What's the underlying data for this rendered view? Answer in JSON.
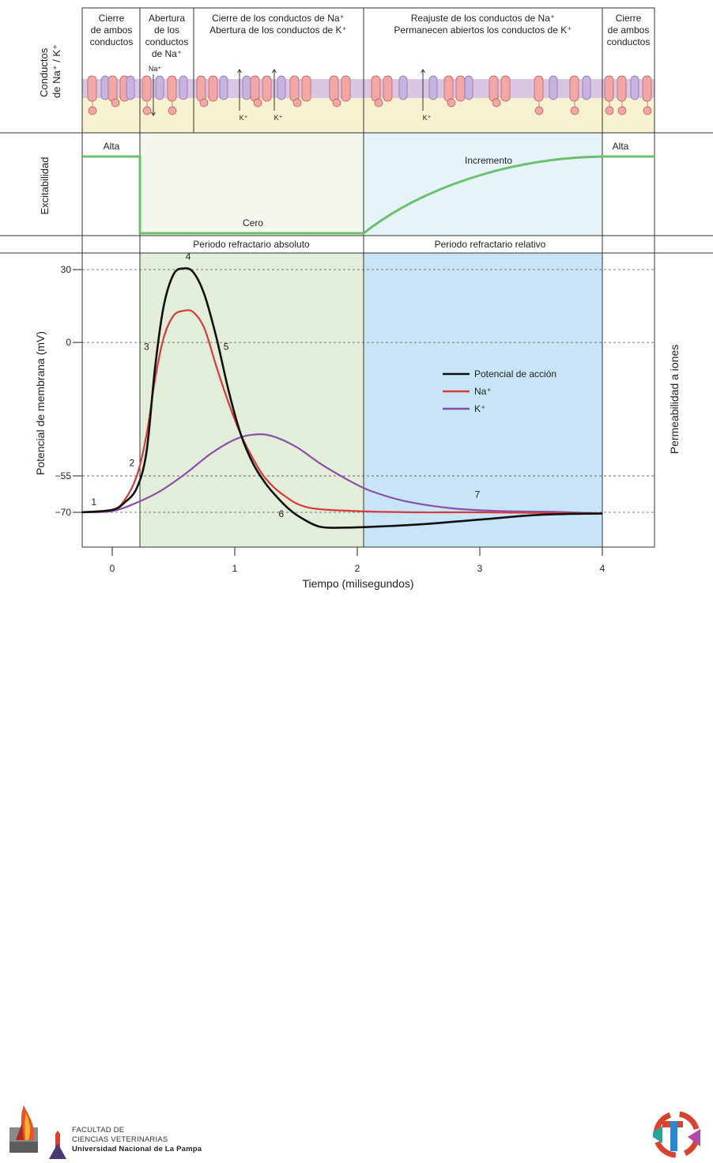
{
  "colors": {
    "action_potential": "#111111",
    "na": "#d63a3a",
    "k": "#8b4fa8",
    "excitability": "#6bbf6e",
    "absolute_bg": "#e3eeda",
    "relative_bg": "#c7e5f6",
    "membrane_band": "#d9c6e3",
    "membrane_below": "#f6f1cf",
    "na_channel": "#f2a7a7",
    "k_channel": "#c6b4e0"
  },
  "channels_panel": {
    "side_label_line1": "Conductos",
    "side_label_line2": "de Na⁺ / K⁺",
    "phases": [
      {
        "lines": [
          "Cierre",
          "de ambos",
          "conductos"
        ]
      },
      {
        "lines": [
          "Abertura",
          "de los",
          "conductos",
          "de Na⁺"
        ]
      },
      {
        "lines": [
          "Cierre de los conductos de Na⁺",
          "Abertura de los conductos de K⁺"
        ]
      },
      {
        "lines": [
          "Reajuste de los conductos de Na⁺",
          "Permanecen abiertos los conductos de K⁺"
        ]
      },
      {
        "lines": [
          "Cierre",
          "de ambos",
          "conductos"
        ]
      }
    ],
    "ion_labels": {
      "na": "Na⁺",
      "k": "K⁺"
    }
  },
  "excitability_panel": {
    "side_label": "Excitabilidad",
    "high_left": "Alta",
    "zero": "Cero",
    "increase": "Incremento",
    "high_right": "Alta",
    "absolute_period": "Periodo refractario absoluto",
    "relative_period": "Periodo refractario relativo"
  },
  "chart_data": {
    "type": "line",
    "title": "",
    "xlabel": "Tiempo (milisegundos)",
    "ylabel": "Potencial de membrana (mV)",
    "y2label": "Permeabilidad a iones",
    "xlim": [
      -0.25,
      4.4
    ],
    "ylim": [
      -80,
      35
    ],
    "x_ticks": [
      0,
      1,
      2,
      3,
      4
    ],
    "x_tick_labels": [
      "0",
      "1",
      "2",
      "3",
      "4"
    ],
    "y_ticks": [
      30,
      0,
      -55,
      -70
    ],
    "y_tick_labels": [
      "30",
      "0",
      "−55",
      "−70"
    ],
    "absolute_refractory_ms": [
      0.23,
      2.05
    ],
    "relative_refractory_ms": [
      2.05,
      4.0
    ],
    "legend": [
      {
        "name": "Potencial de acción",
        "series": "ap"
      },
      {
        "name": "Na⁺",
        "series": "na"
      },
      {
        "name": "K⁺",
        "series": "k"
      }
    ],
    "series": [
      {
        "id": "ap",
        "name": "Potencial de acción",
        "unit": "mV",
        "x": [
          -0.25,
          0,
          0.1,
          0.2,
          0.28,
          0.35,
          0.42,
          0.5,
          0.58,
          0.66,
          0.75,
          0.85,
          0.95,
          1.05,
          1.15,
          1.25,
          1.35,
          1.45,
          1.55,
          1.7,
          1.9,
          2.1,
          2.5,
          3.0,
          3.5,
          4.0
        ],
        "y": [
          -70,
          -69,
          -66,
          -60,
          -45,
          -10,
          15,
          28,
          30.5,
          29,
          20,
          2,
          -20,
          -38,
          -50,
          -58,
          -64,
          -69,
          -72.5,
          -76,
          -76.3,
          -76,
          -75,
          -73,
          -71,
          -70.5
        ]
      },
      {
        "id": "na",
        "name": "Na⁺",
        "unit": "mV",
        "x": [
          -0.25,
          0,
          0.1,
          0.2,
          0.28,
          0.35,
          0.42,
          0.5,
          0.58,
          0.66,
          0.75,
          0.85,
          0.95,
          1.05,
          1.15,
          1.25,
          1.4,
          1.6,
          2.0,
          2.5,
          3.0,
          4.0
        ],
        "y": [
          -70,
          -69,
          -65,
          -55,
          -38,
          -15,
          2,
          11,
          13,
          12.5,
          6,
          -10,
          -25,
          -38,
          -48,
          -56,
          -63,
          -68,
          -69.5,
          -70,
          -70,
          -70.5
        ]
      },
      {
        "id": "k",
        "name": "K⁺",
        "unit": "mV",
        "x": [
          -0.25,
          0,
          0.2,
          0.4,
          0.6,
          0.8,
          1.0,
          1.15,
          1.3,
          1.5,
          1.7,
          1.9,
          2.1,
          2.4,
          2.8,
          3.2,
          3.6,
          4.0
        ],
        "y": [
          -70,
          -69.5,
          -66,
          -61,
          -54,
          -46,
          -40,
          -38,
          -38.5,
          -43,
          -50,
          -56,
          -61,
          -65.5,
          -68.5,
          -69.5,
          -69.8,
          -70.5
        ]
      }
    ],
    "annotations": [
      {
        "text": "1",
        "x": -0.15,
        "y": -67
      },
      {
        "text": "2",
        "x": 0.16,
        "y": -51
      },
      {
        "text": "3",
        "x": 0.28,
        "y": -3
      },
      {
        "text": "4",
        "x": 0.62,
        "y": 34
      },
      {
        "text": "5",
        "x": 0.93,
        "y": -3
      },
      {
        "text": "6",
        "x": 1.38,
        "y": -72
      },
      {
        "text": "7",
        "x": 2.98,
        "y": -64
      }
    ]
  },
  "footer": {
    "faculty_line1": "FACULTAD DE",
    "faculty_line2": "CIENCIAS VETERINARIAS",
    "university": "Universidad Nacional de La Pampa"
  }
}
